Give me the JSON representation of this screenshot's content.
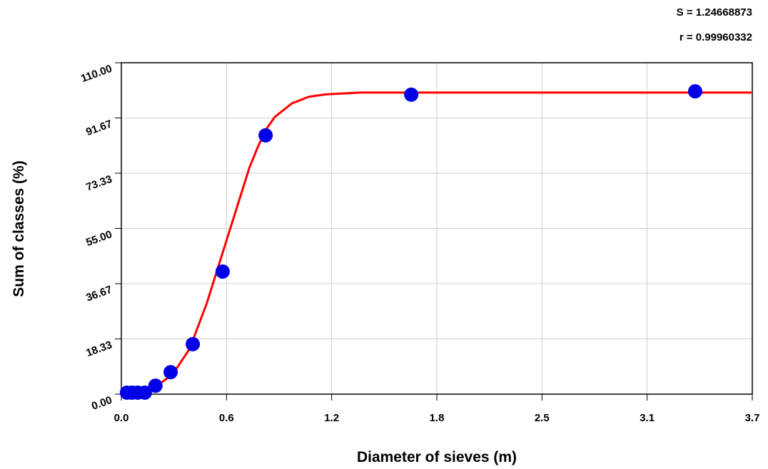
{
  "chart_data": {
    "type": "scatter",
    "annotations": [
      "S = 1.24668873",
      "r = 0.99960332"
    ],
    "xlabel": "Diameter of sieves (m)",
    "ylabel": "Sum of classes (%)",
    "xlim": [
      0,
      3.7
    ],
    "ylim": [
      0,
      110
    ],
    "xticks": [
      {
        "value": 0,
        "label": "0.0"
      },
      {
        "value": 0.6167,
        "label": "0.6"
      },
      {
        "value": 1.2333,
        "label": "1.2"
      },
      {
        "value": 1.85,
        "label": "1.8"
      },
      {
        "value": 2.4667,
        "label": "2.5"
      },
      {
        "value": 3.0833,
        "label": "3.1"
      },
      {
        "value": 3.7,
        "label": "3.7"
      }
    ],
    "yticks": [
      {
        "value": 0,
        "label": "0.00"
      },
      {
        "value": 18.3333,
        "label": "18.33"
      },
      {
        "value": 36.6667,
        "label": "36.67"
      },
      {
        "value": 55,
        "label": "55.00"
      },
      {
        "value": 73.3333,
        "label": "73.33"
      },
      {
        "value": 91.6667,
        "label": "91.67"
      },
      {
        "value": 110,
        "label": "110.00"
      }
    ],
    "grid": true,
    "series": [
      {
        "style": "markers",
        "color": "#0000e6",
        "x": [
          0.033,
          0.063,
          0.096,
          0.138,
          0.2,
          0.289,
          0.419,
          0.594,
          0.846,
          1.7,
          3.365
        ],
        "values": [
          0.5,
          0.5,
          0.5,
          0.5,
          2.8,
          7.3,
          16.6,
          40.7,
          85.9,
          99.4,
          100.5
        ]
      },
      {
        "style": "line",
        "color": "#ff0000",
        "x": [
          0,
          0.1,
          0.2,
          0.3,
          0.4,
          0.5,
          0.55,
          0.6,
          0.65,
          0.7,
          0.75,
          0.8,
          0.85,
          0.9,
          1.0,
          1.1,
          1.2,
          1.4,
          2.0,
          3.0,
          3.7
        ],
        "values": [
          0.5,
          0.9,
          2.5,
          6.5,
          15,
          30,
          39,
          48,
          57,
          66,
          75,
          82,
          88,
          92,
          96.5,
          98.7,
          99.5,
          100.1,
          100.1,
          100.1,
          100.1
        ]
      }
    ]
  }
}
